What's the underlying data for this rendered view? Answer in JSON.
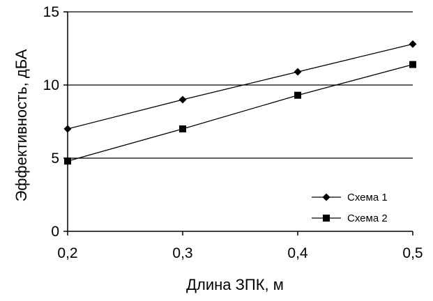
{
  "chart_data": {
    "type": "line",
    "xlabel": "Длина ЗПК, м",
    "ylabel": "Эффективность, дБА",
    "x": [
      0.2,
      0.3,
      0.4,
      0.5
    ],
    "x_tick_labels": [
      "0,2",
      "0,3",
      "0,4",
      "0,5"
    ],
    "y_ticks": [
      0,
      5,
      10,
      15
    ],
    "y_tick_labels": [
      "0",
      "5",
      "10",
      "15"
    ],
    "xlim": [
      0.2,
      0.5
    ],
    "ylim": [
      0,
      15
    ],
    "grid": "horizontal",
    "legend_position": "bottom-right",
    "series": [
      {
        "name": "Схема 1",
        "marker": "diamond",
        "values": [
          7.0,
          9.0,
          10.9,
          12.8
        ]
      },
      {
        "name": "Схема 2",
        "marker": "square",
        "values": [
          4.8,
          7.0,
          9.3,
          11.4
        ]
      }
    ],
    "colors": {
      "line": "#000000",
      "grid": "#000000",
      "background": "#ffffff"
    }
  }
}
